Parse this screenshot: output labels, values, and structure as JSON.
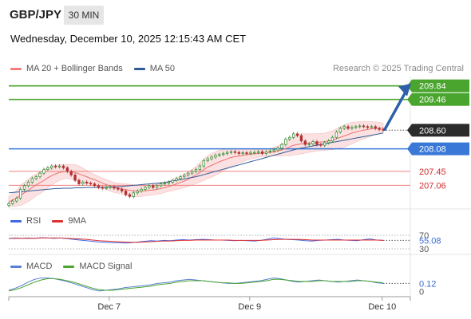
{
  "header": {
    "pair": "GBP/JPY",
    "timeframe": "30 MIN",
    "datetime": "Wednesday, December 10, 2025 12:15:43 AM CET"
  },
  "legend_main": [
    {
      "label": "MA 20 + Bollinger Bands",
      "color": "#f08080"
    },
    {
      "label": "MA 50",
      "color": "#2f5d9a"
    }
  ],
  "credit": "Research © 2025 Trading Central",
  "legend_rsi": [
    {
      "label": "RSI",
      "color": "#4169e1"
    },
    {
      "label": "9MA",
      "color": "#e03030"
    }
  ],
  "legend_macd": [
    {
      "label": "MACD",
      "color": "#5b7fd6"
    },
    {
      "label": "MACD Signal",
      "color": "#4aa52e"
    }
  ],
  "colors": {
    "resistance": "#4aa52e",
    "support": "#3a78d8",
    "minor": "#f08080",
    "bull": "#2e8b2e",
    "bear": "#b03030",
    "arrow": "#2f5fa8",
    "price_box": "#2b2b2b"
  },
  "chart_data": [
    {
      "type": "candlestick",
      "ylim": [
        206.4,
        210.1
      ],
      "x_ticks": [
        {
          "label": "Dec 7",
          "pos": 0.25
        },
        {
          "label": "Dec 9",
          "pos": 0.6
        },
        {
          "label": "Dec 10",
          "pos": 0.93
        }
      ],
      "levels": [
        {
          "value": "209.84",
          "kind": "resistance"
        },
        {
          "value": "209.46",
          "kind": "resistance"
        },
        {
          "value": "208.08",
          "kind": "support"
        },
        {
          "value": "207.45",
          "kind": "minor"
        },
        {
          "value": "207.06",
          "kind": "minor"
        }
      ],
      "last_price": "208.60",
      "closes": [
        206.55,
        206.62,
        206.7,
        206.95,
        207.05,
        207.15,
        207.25,
        207.3,
        207.4,
        207.5,
        207.55,
        207.6,
        207.58,
        207.6,
        207.55,
        207.45,
        207.35,
        207.2,
        207.1,
        207.15,
        207.12,
        207.1,
        207.05,
        207.0,
        206.98,
        207.0,
        207.02,
        206.98,
        206.95,
        206.9,
        206.8,
        206.75,
        206.85,
        206.9,
        206.95,
        207.0,
        207.05,
        207.0,
        207.05,
        207.1,
        207.12,
        207.15,
        207.2,
        207.25,
        207.3,
        207.35,
        207.4,
        207.45,
        207.5,
        207.6,
        207.75,
        207.8,
        207.85,
        207.9,
        207.92,
        207.95,
        207.98,
        208.0,
        207.98,
        207.95,
        207.97,
        207.95,
        207.98,
        207.98,
        208.0,
        207.95,
        208.0,
        208.02,
        208.05,
        208.1,
        208.2,
        208.35,
        208.4,
        208.5,
        208.45,
        208.3,
        208.2,
        208.22,
        208.28,
        208.2,
        208.18,
        208.25,
        208.3,
        208.4,
        208.55,
        208.65,
        208.7,
        208.65,
        208.68,
        208.7,
        208.72,
        208.7,
        208.68,
        208.7,
        208.65,
        208.62,
        208.6
      ],
      "ma20": [
        206.6,
        206.65,
        206.7,
        206.78,
        206.85,
        206.92,
        207.0,
        207.07,
        207.13,
        207.2,
        207.27,
        207.33,
        207.38,
        207.42,
        207.44,
        207.45,
        207.44,
        207.42,
        207.38,
        207.34,
        207.3,
        207.25,
        207.22,
        207.17,
        207.12,
        207.08,
        207.04,
        207.0,
        206.98,
        206.96,
        206.94,
        206.92,
        206.91,
        206.9,
        206.9,
        206.91,
        206.92,
        206.93,
        206.95,
        206.97,
        207.0,
        207.03,
        207.06,
        207.1,
        207.14,
        207.18,
        207.23,
        207.29,
        207.35,
        207.42,
        207.5,
        207.57,
        207.62,
        207.67,
        207.72,
        207.76,
        207.8,
        207.84,
        207.86,
        207.88,
        207.9,
        207.92,
        207.93,
        207.94,
        207.95,
        207.96,
        207.97,
        207.98,
        208.0,
        208.02,
        208.05,
        208.09,
        208.13,
        208.18,
        208.2,
        208.22,
        208.23,
        208.24,
        208.25,
        208.26,
        208.27,
        208.28,
        208.3,
        208.32,
        208.36,
        208.4,
        208.44,
        208.48,
        208.52,
        208.55,
        208.58,
        208.6,
        208.62,
        208.64,
        208.65,
        208.66,
        208.66
      ],
      "bb_width": [
        0.15,
        0.18,
        0.22,
        0.28,
        0.3,
        0.32,
        0.32,
        0.3,
        0.3,
        0.3,
        0.28,
        0.26,
        0.24,
        0.22,
        0.2,
        0.2,
        0.2,
        0.22,
        0.22,
        0.2,
        0.18,
        0.16,
        0.14,
        0.14,
        0.14,
        0.14,
        0.14,
        0.14,
        0.14,
        0.15,
        0.16,
        0.17,
        0.17,
        0.16,
        0.15,
        0.14,
        0.14,
        0.14,
        0.14,
        0.14,
        0.14,
        0.14,
        0.15,
        0.16,
        0.17,
        0.18,
        0.2,
        0.22,
        0.24,
        0.27,
        0.3,
        0.32,
        0.33,
        0.33,
        0.32,
        0.3,
        0.28,
        0.25,
        0.22,
        0.2,
        0.18,
        0.16,
        0.14,
        0.12,
        0.1,
        0.1,
        0.1,
        0.1,
        0.12,
        0.14,
        0.17,
        0.2,
        0.24,
        0.27,
        0.28,
        0.28,
        0.27,
        0.26,
        0.25,
        0.24,
        0.24,
        0.24,
        0.25,
        0.26,
        0.28,
        0.3,
        0.31,
        0.31,
        0.3,
        0.28,
        0.26,
        0.24,
        0.22,
        0.2,
        0.18,
        0.16,
        0.14
      ],
      "ma50": [
        206.85,
        206.86,
        206.87,
        206.88,
        206.89,
        206.9,
        206.91,
        206.92,
        206.93,
        206.94,
        206.95,
        206.96,
        206.97,
        206.97,
        206.98,
        206.98,
        206.98,
        206.99,
        206.99,
        206.99,
        207.0,
        207.0,
        207.0,
        207.0,
        207.0,
        207.01,
        207.01,
        207.02,
        207.02,
        207.03,
        207.04,
        207.05,
        207.06,
        207.07,
        207.08,
        207.09,
        207.1,
        207.11,
        207.12,
        207.13,
        207.14,
        207.16,
        207.18,
        207.2,
        207.22,
        207.24,
        207.26,
        207.28,
        207.3,
        207.33,
        207.36,
        207.39,
        207.42,
        207.45,
        207.48,
        207.51,
        207.54,
        207.57,
        207.6,
        207.63,
        207.66,
        207.69,
        207.72,
        207.75,
        207.78,
        207.81,
        207.84,
        207.87,
        207.9,
        207.93,
        207.96,
        207.99,
        208.02,
        208.05,
        208.08,
        208.1,
        208.12,
        208.14,
        208.16,
        208.18,
        208.2,
        208.22,
        208.24,
        208.26,
        208.28,
        208.3,
        208.32,
        208.34,
        208.36,
        208.38,
        208.4,
        208.42,
        208.44,
        208.46,
        208.48,
        208.5,
        208.52
      ]
    },
    {
      "type": "line",
      "title": "RSI",
      "ylim": [
        30,
        70
      ],
      "y_ticks": [
        "70",
        "30"
      ],
      "last_value": "55.08",
      "series": [
        {
          "name": "RSI",
          "values": [
            60,
            62,
            61,
            62,
            61,
            63,
            62,
            61,
            62,
            60,
            58,
            56,
            54,
            52,
            50,
            49,
            48,
            48,
            47,
            48,
            50,
            52,
            54,
            53,
            55,
            54,
            56,
            57,
            56,
            57,
            58,
            57,
            56,
            56,
            55,
            54,
            55,
            54,
            53,
            55,
            58,
            62,
            60,
            58,
            57,
            56,
            54,
            53,
            55,
            56,
            57,
            58,
            56,
            55,
            54,
            57,
            59,
            56,
            55
          ]
        },
        {
          "name": "9MA",
          "values": [
            61,
            61,
            61,
            61,
            61,
            62,
            62,
            62,
            62,
            61,
            60,
            59,
            58,
            56,
            54,
            53,
            52,
            51,
            50,
            49,
            49,
            50,
            51,
            52,
            53,
            53,
            54,
            55,
            55,
            56,
            56,
            56,
            56,
            56,
            56,
            55,
            55,
            55,
            55,
            55,
            56,
            57,
            58,
            58,
            58,
            58,
            57,
            56,
            56,
            56,
            56,
            56,
            56,
            56,
            56,
            56,
            56,
            56,
            55
          ]
        }
      ]
    },
    {
      "type": "line",
      "title": "MACD",
      "ylim": [
        -0.05,
        0.3
      ],
      "y_ticks": [
        "0"
      ],
      "last_value": "0.12",
      "series": [
        {
          "name": "MACD",
          "values": [
            0.02,
            0.05,
            0.09,
            0.14,
            0.18,
            0.2,
            0.2,
            0.19,
            0.17,
            0.15,
            0.12,
            0.09,
            0.06,
            0.03,
            0.01,
            0.02,
            0.03,
            0.04,
            0.06,
            0.07,
            0.08,
            0.09,
            0.1,
            0.12,
            0.13,
            0.14,
            0.16,
            0.17,
            0.18,
            0.17,
            0.16,
            0.15,
            0.14,
            0.13,
            0.12,
            0.12,
            0.13,
            0.14,
            0.15,
            0.16,
            0.18,
            0.2,
            0.19,
            0.17,
            0.15,
            0.14,
            0.15,
            0.16,
            0.17,
            0.16,
            0.15,
            0.14,
            0.15,
            0.16,
            0.17,
            0.16,
            0.15,
            0.13,
            0.12
          ]
        },
        {
          "name": "MACD Signal",
          "values": [
            0.01,
            0.03,
            0.06,
            0.1,
            0.14,
            0.17,
            0.19,
            0.19,
            0.18,
            0.16,
            0.14,
            0.11,
            0.08,
            0.05,
            0.03,
            0.02,
            0.02,
            0.03,
            0.04,
            0.05,
            0.06,
            0.07,
            0.08,
            0.1,
            0.11,
            0.12,
            0.14,
            0.15,
            0.16,
            0.16,
            0.16,
            0.15,
            0.14,
            0.13,
            0.13,
            0.12,
            0.12,
            0.13,
            0.14,
            0.15,
            0.16,
            0.18,
            0.18,
            0.17,
            0.16,
            0.15,
            0.15,
            0.15,
            0.16,
            0.16,
            0.15,
            0.15,
            0.15,
            0.15,
            0.16,
            0.16,
            0.15,
            0.14,
            0.13
          ]
        }
      ]
    }
  ]
}
